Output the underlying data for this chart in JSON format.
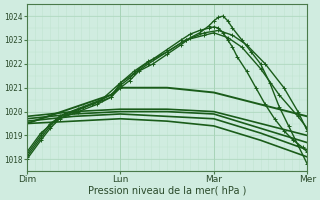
{
  "xlabel": "Pression niveau de la mer( hPa )",
  "ylim": [
    1017.5,
    1024.5
  ],
  "xlim": [
    0.0,
    3.0
  ],
  "yticks": [
    1018,
    1019,
    1020,
    1021,
    1022,
    1023,
    1024
  ],
  "xtick_labels": [
    "Dim",
    "Lun",
    "Mar",
    "Mer"
  ],
  "xtick_positions": [
    0.0,
    1.0,
    2.0,
    3.0
  ],
  "bg_color": "#d0ece0",
  "grid_color_major": "#a8d4b8",
  "grid_color_minor": "#c0e4d0",
  "line_color": "#1a5c1a",
  "series": [
    {
      "x": [
        0.0,
        0.15,
        0.25,
        0.35,
        0.55,
        0.75,
        0.9,
        1.0,
        1.1,
        1.2,
        1.35,
        1.5,
        1.65,
        1.75,
        1.85,
        1.95,
        2.0,
        2.05,
        2.1,
        2.15,
        2.2,
        2.3,
        2.4,
        2.5,
        2.6,
        2.7,
        2.8,
        2.9,
        3.0
      ],
      "y": [
        1018.0,
        1018.8,
        1019.3,
        1019.7,
        1020.0,
        1020.3,
        1020.6,
        1021.0,
        1021.3,
        1021.7,
        1022.0,
        1022.4,
        1022.8,
        1023.1,
        1023.3,
        1023.6,
        1023.8,
        1023.95,
        1024.0,
        1023.8,
        1023.5,
        1023.0,
        1022.5,
        1022.0,
        1021.2,
        1020.2,
        1019.4,
        1018.6,
        1017.8
      ],
      "marker": "+",
      "lw": 1.0,
      "ms": 2.5
    },
    {
      "x": [
        0.0,
        0.15,
        0.25,
        0.35,
        0.55,
        0.75,
        0.9,
        1.0,
        1.1,
        1.2,
        1.35,
        1.5,
        1.65,
        1.75,
        1.85,
        1.95,
        2.0,
        2.05,
        2.1,
        2.15,
        2.2,
        2.25,
        2.35,
        2.45,
        2.55,
        2.65,
        2.75,
        2.85,
        2.95,
        3.0
      ],
      "y": [
        1018.1,
        1018.9,
        1019.4,
        1019.8,
        1020.1,
        1020.4,
        1020.7,
        1021.1,
        1021.4,
        1021.8,
        1022.2,
        1022.6,
        1023.0,
        1023.25,
        1023.4,
        1023.5,
        1023.55,
        1023.5,
        1023.3,
        1023.0,
        1022.7,
        1022.3,
        1021.7,
        1021.0,
        1020.3,
        1019.7,
        1019.2,
        1018.8,
        1018.5,
        1018.3
      ],
      "marker": "+",
      "lw": 1.0,
      "ms": 2.5
    },
    {
      "x": [
        0.0,
        0.15,
        0.25,
        0.4,
        0.6,
        0.8,
        1.0,
        1.15,
        1.3,
        1.5,
        1.7,
        1.9,
        2.05,
        2.2,
        2.35,
        2.55,
        2.75,
        2.9,
        3.0
      ],
      "y": [
        1018.2,
        1019.0,
        1019.5,
        1019.9,
        1020.2,
        1020.5,
        1021.2,
        1021.6,
        1022.0,
        1022.5,
        1023.0,
        1023.3,
        1023.4,
        1023.2,
        1022.8,
        1022.0,
        1021.0,
        1020.0,
        1019.2
      ],
      "marker": "+",
      "lw": 1.0,
      "ms": 2.5
    },
    {
      "x": [
        0.0,
        0.15,
        0.3,
        0.5,
        0.7,
        0.9,
        1.0,
        1.15,
        1.3,
        1.5,
        1.7,
        1.9,
        2.0,
        2.15,
        2.3,
        2.5,
        2.7,
        2.9,
        3.0
      ],
      "y": [
        1018.3,
        1019.1,
        1019.6,
        1020.0,
        1020.3,
        1020.6,
        1021.2,
        1021.7,
        1022.1,
        1022.5,
        1023.0,
        1023.2,
        1023.3,
        1023.1,
        1022.7,
        1021.8,
        1020.7,
        1019.8,
        1019.3
      ],
      "marker": "+",
      "lw": 1.0,
      "ms": 2.5
    },
    {
      "x": [
        0.0,
        0.5,
        1.0,
        1.5,
        2.0,
        2.5,
        3.0
      ],
      "y": [
        1019.8,
        1020.0,
        1020.1,
        1020.1,
        1020.0,
        1019.5,
        1019.0
      ],
      "marker": null,
      "lw": 1.2,
      "ms": 0
    },
    {
      "x": [
        0.0,
        0.5,
        1.0,
        1.5,
        2.0,
        2.5,
        3.0
      ],
      "y": [
        1019.7,
        1019.9,
        1020.0,
        1020.0,
        1019.9,
        1019.3,
        1018.7
      ],
      "marker": null,
      "lw": 1.2,
      "ms": 0
    },
    {
      "x": [
        0.0,
        0.5,
        1.0,
        1.5,
        2.0,
        2.5,
        3.0
      ],
      "y": [
        1019.6,
        1019.8,
        1019.9,
        1019.8,
        1019.7,
        1019.1,
        1018.4
      ],
      "marker": null,
      "lw": 1.2,
      "ms": 0
    },
    {
      "x": [
        0.0,
        0.5,
        1.0,
        1.5,
        2.0,
        2.5,
        3.0
      ],
      "y": [
        1019.5,
        1019.6,
        1019.7,
        1019.6,
        1019.4,
        1018.8,
        1018.1
      ],
      "marker": null,
      "lw": 1.2,
      "ms": 0
    },
    {
      "x": [
        0.0,
        0.3,
        0.6,
        0.9,
        1.0,
        1.5,
        2.0,
        2.5,
        3.0
      ],
      "y": [
        1019.5,
        1019.9,
        1020.3,
        1020.7,
        1021.0,
        1021.0,
        1020.8,
        1020.3,
        1019.8
      ],
      "marker": null,
      "lw": 1.4,
      "ms": 0
    }
  ]
}
